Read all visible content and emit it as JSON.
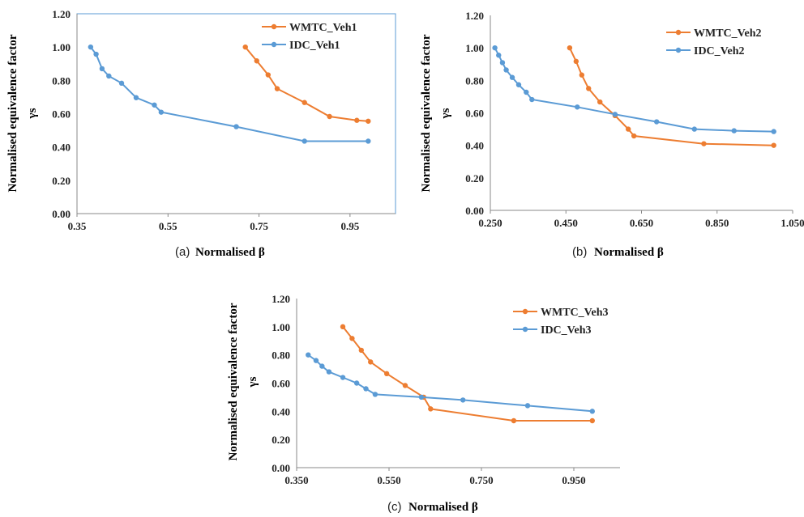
{
  "chart_data": [
    {
      "type": "line",
      "caption_prefix": "(a)",
      "xlabel": "Normalised β",
      "ylabel": "Normalised equivalence factor",
      "ylabel_sub": "γs",
      "xlim": [
        0.35,
        1.05
      ],
      "ylim": [
        0.0,
        1.2
      ],
      "xticks": [
        "0.35",
        "0.55",
        "0.75",
        "0.95"
      ],
      "yticks": [
        "0.00",
        "0.20",
        "0.40",
        "0.60",
        "0.80",
        "1.00",
        "1.20"
      ],
      "legend_position": "top-right",
      "plot_border": true,
      "series": [
        {
          "name": "WMTC_Veh1",
          "color": "#ED7D31",
          "x": [
            0.72,
            0.745,
            0.77,
            0.79,
            0.85,
            0.905,
            0.965,
            0.99
          ],
          "y": [
            1.0,
            0.917,
            0.833,
            0.75,
            0.667,
            0.583,
            0.56,
            0.555
          ]
        },
        {
          "name": "IDC_Veh1",
          "color": "#5B9BD5",
          "x": [
            0.38,
            0.392,
            0.405,
            0.42,
            0.448,
            0.48,
            0.52,
            0.535,
            0.7,
            0.85,
            0.99
          ],
          "y": [
            1.0,
            0.957,
            0.87,
            0.826,
            0.783,
            0.696,
            0.652,
            0.609,
            0.522,
            0.435,
            0.435
          ]
        }
      ]
    },
    {
      "type": "line",
      "caption_prefix": "(b)",
      "xlabel": "Normalised β",
      "ylabel": "Normalised equivalence factor",
      "ylabel_sub": "γs",
      "xlim": [
        0.25,
        1.05
      ],
      "ylim": [
        0.0,
        1.2
      ],
      "xticks": [
        "0.250",
        "0.450",
        "0.650",
        "0.850",
        "1.050"
      ],
      "yticks": [
        "0.00",
        "0.20",
        "0.40",
        "0.60",
        "0.80",
        "1.00",
        "1.20"
      ],
      "legend_position": "top-right",
      "plot_border": false,
      "series": [
        {
          "name": "WMTC_Veh2",
          "color": "#ED7D31",
          "x": [
            0.46,
            0.477,
            0.492,
            0.51,
            0.54,
            0.58,
            0.615,
            0.63,
            0.815,
            1.0
          ],
          "y": [
            1.0,
            0.917,
            0.833,
            0.75,
            0.667,
            0.583,
            0.5,
            0.458,
            0.41,
            0.4
          ]
        },
        {
          "name": "IDC_Veh2",
          "color": "#5B9BD5",
          "x": [
            0.262,
            0.272,
            0.282,
            0.292,
            0.308,
            0.325,
            0.345,
            0.36,
            0.48,
            0.58,
            0.69,
            0.79,
            0.895,
            1.0
          ],
          "y": [
            1.0,
            0.955,
            0.909,
            0.864,
            0.818,
            0.773,
            0.727,
            0.682,
            0.636,
            0.591,
            0.545,
            0.5,
            0.49,
            0.485
          ]
        }
      ]
    },
    {
      "type": "line",
      "caption_prefix": "(c)",
      "xlabel": "Normalised β",
      "ylabel": "Normalised equivalence factor",
      "ylabel_sub": "γs",
      "xlim": [
        0.35,
        1.05
      ],
      "ylim": [
        0.0,
        1.2
      ],
      "xticks": [
        "0.350",
        "0.550",
        "0.750",
        "0.950"
      ],
      "yticks": [
        "0.00",
        "0.20",
        "0.40",
        "0.60",
        "0.80",
        "1.00",
        "1.20"
      ],
      "legend_position": "top-right",
      "plot_border": false,
      "series": [
        {
          "name": "WMTC_Veh3",
          "color": "#ED7D31",
          "x": [
            0.45,
            0.47,
            0.49,
            0.51,
            0.545,
            0.585,
            0.625,
            0.64,
            0.82,
            0.99
          ],
          "y": [
            1.0,
            0.917,
            0.833,
            0.75,
            0.667,
            0.583,
            0.5,
            0.417,
            0.333,
            0.333
          ]
        },
        {
          "name": "IDC_Veh3",
          "color": "#5B9BD5",
          "x": [
            0.375,
            0.392,
            0.405,
            0.42,
            0.45,
            0.48,
            0.5,
            0.52,
            0.62,
            0.71,
            0.85,
            0.99
          ],
          "y": [
            0.8,
            0.76,
            0.72,
            0.68,
            0.64,
            0.6,
            0.56,
            0.52,
            0.5,
            0.48,
            0.44,
            0.4
          ]
        }
      ]
    }
  ]
}
